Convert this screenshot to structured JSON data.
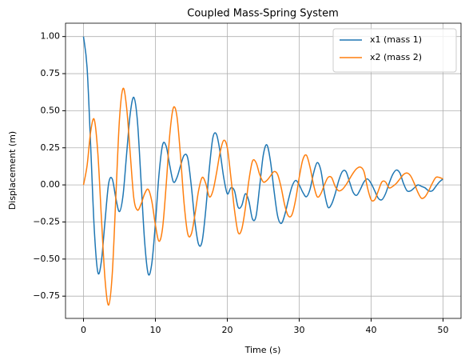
{
  "chart_data": {
    "type": "line",
    "title": "Coupled Mass-Spring System",
    "x_label": "Time (s)",
    "y_label": "Displacement (m)",
    "x": [
      0,
      0.5,
      1,
      1.5,
      2,
      2.5,
      3,
      3.5,
      4,
      4.5,
      5,
      5.5,
      6,
      6.5,
      7,
      7.5,
      8,
      8.5,
      9,
      9.5,
      10,
      10.5,
      11,
      11.5,
      12,
      12.5,
      13,
      13.5,
      14,
      14.5,
      15,
      15.5,
      16,
      16.5,
      17,
      17.5,
      18,
      18.5,
      19,
      19.5,
      20,
      20.5,
      21,
      21.5,
      22,
      22.5,
      23,
      23.5,
      24,
      24.5,
      25,
      25.5,
      26,
      26.5,
      27,
      27.5,
      28,
      28.5,
      29,
      29.5,
      30,
      30.5,
      31,
      31.5,
      32,
      32.5,
      33,
      33.5,
      34,
      34.5,
      35,
      35.5,
      36,
      36.5,
      37,
      37.5,
      38,
      38.5,
      39,
      39.5,
      40,
      40.5,
      41,
      41.5,
      42,
      42.5,
      43,
      43.5,
      44,
      44.5,
      45,
      45.5,
      46,
      46.5,
      47,
      47.5,
      48,
      48.5,
      49,
      49.5,
      50
    ],
    "series": [
      {
        "name": "x1 (mass 1)",
        "color": "#1f77b4",
        "values": [
          1.0,
          0.79,
          0.26,
          -0.3,
          -0.59,
          -0.51,
          -0.24,
          0.01,
          0.04,
          -0.09,
          -0.18,
          -0.07,
          0.21,
          0.48,
          0.59,
          0.43,
          0.03,
          -0.38,
          -0.6,
          -0.53,
          -0.26,
          0.07,
          0.27,
          0.26,
          0.13,
          0.02,
          0.05,
          0.13,
          0.2,
          0.18,
          -0.01,
          -0.25,
          -0.4,
          -0.38,
          -0.17,
          0.11,
          0.32,
          0.34,
          0.22,
          0.05,
          -0.06,
          -0.02,
          -0.04,
          -0.15,
          -0.14,
          -0.06,
          -0.11,
          -0.23,
          -0.21,
          -0.01,
          0.2,
          0.27,
          0.16,
          -0.04,
          -0.21,
          -0.26,
          -0.2,
          -0.1,
          -0.01,
          0.03,
          0,
          -0.05,
          -0.08,
          -0.03,
          0.08,
          0.15,
          0.1,
          -0.05,
          -0.15,
          -0.13,
          -0.06,
          0.03,
          0.09,
          0.09,
          0.02,
          -0.05,
          -0.07,
          -0.03,
          0.02,
          0.04,
          0.01,
          -0.04,
          -0.09,
          -0.1,
          -0.06,
          0.01,
          0.07,
          0.1,
          0.08,
          0.01,
          -0.04,
          -0.04,
          -0.02,
          0,
          -0.01,
          -0.02,
          -0.04,
          -0.04,
          -0.01,
          0.02,
          0.04
        ]
      },
      {
        "name": "x2 (mass 2)",
        "color": "#ff7f0e",
        "values": [
          0,
          0.13,
          0.36,
          0.44,
          0.21,
          -0.23,
          -0.64,
          -0.81,
          -0.6,
          -0.08,
          0.44,
          0.65,
          0.52,
          0.21,
          -0.09,
          -0.17,
          -0.13,
          -0.06,
          -0.03,
          -0.11,
          -0.27,
          -0.38,
          -0.29,
          0,
          0.34,
          0.52,
          0.46,
          0.19,
          -0.13,
          -0.33,
          -0.33,
          -0.2,
          -0.04,
          0.05,
          0.01,
          -0.08,
          -0.04,
          0.08,
          0.22,
          0.3,
          0.25,
          0.05,
          -0.17,
          -0.32,
          -0.3,
          -0.16,
          0.03,
          0.16,
          0.15,
          0.07,
          0.02,
          0.03,
          0.06,
          0.09,
          0.07,
          -0.02,
          -0.14,
          -0.21,
          -0.2,
          -0.1,
          0.05,
          0.17,
          0.2,
          0.12,
          0,
          -0.08,
          -0.06,
          0,
          0.05,
          0.05,
          -0.01,
          -0.04,
          -0.03,
          0,
          0.04,
          0.08,
          0.11,
          0.12,
          0.09,
          -0.02,
          -0.1,
          -0.1,
          -0.04,
          0.02,
          0.02,
          -0.02,
          -0.01,
          0.01,
          0.04,
          0.07,
          0.08,
          0.06,
          0.01,
          -0.05,
          -0.09,
          -0.08,
          -0.04,
          0.01,
          0.05,
          0.05,
          0.04
        ]
      }
    ],
    "xlim": [
      -2.5,
      52.5
    ],
    "ylim": [
      -0.9,
      1.09
    ],
    "xticks": [
      0,
      10,
      20,
      30,
      40,
      50
    ],
    "yticks": [
      {
        "value": -0.75,
        "label": "−0.75"
      },
      {
        "value": -0.5,
        "label": "−0.50"
      },
      {
        "value": -0.25,
        "label": "−0.25"
      },
      {
        "value": 0,
        "label": "0.00"
      },
      0.25,
      {
        "value": 0.5,
        "label": "0.50"
      },
      0.75,
      {
        "value": 1.0,
        "label": "1.00"
      }
    ],
    "grid": true,
    "legend": "upper right"
  }
}
